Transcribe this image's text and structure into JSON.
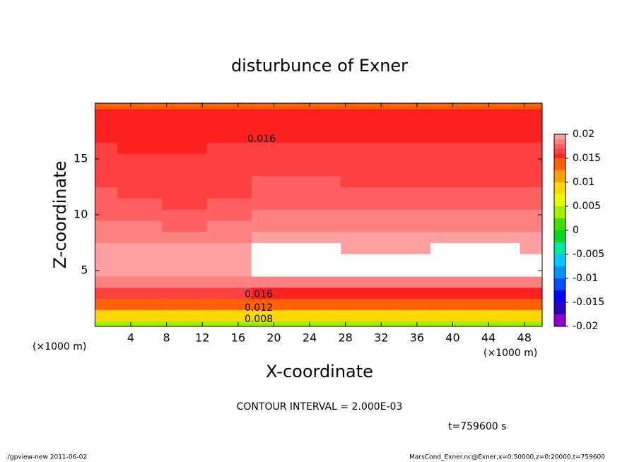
{
  "chart_data": {
    "type": "contour",
    "title": "disturbunce of Exner",
    "x_label": "X-coordinate",
    "y_label": "Z-coordinate",
    "x_unit_left": "(×1000 m)",
    "x_unit_right": "(×1000 m)",
    "contour_interval": "CONTOUR INTERVAL = 2.000E-03",
    "time_label": "t=759600 s",
    "footer_left": "./gpview-new  2011-06-02",
    "footer_right": "MarsCond_Exner.nc@Exner,x=0:50000,z=0:20000,t=759600",
    "xlim": [
      0,
      50
    ],
    "ylim": [
      0,
      20
    ],
    "xticks": [
      4,
      8,
      12,
      16,
      20,
      24,
      28,
      32,
      36,
      40,
      44,
      48
    ],
    "yticks": [
      5,
      10,
      15
    ],
    "x": [
      0,
      5,
      10,
      15,
      20,
      25,
      30,
      35,
      40,
      45,
      50
    ],
    "z": [
      0,
      1,
      2,
      3,
      4,
      5,
      6,
      7,
      8,
      9,
      10,
      11,
      12,
      13,
      14,
      15,
      16,
      17,
      18,
      19,
      20
    ],
    "values": [
      [
        0.0045,
        0.0045,
        0.0046,
        0.0046,
        0.0045,
        0.0045,
        0.0046,
        0.0046,
        0.0045,
        0.0045,
        0.0046
      ],
      [
        0.0095,
        0.0094,
        0.0093,
        0.0092,
        0.0092,
        0.0093,
        0.0092,
        0.0092,
        0.0093,
        0.0092,
        0.0093
      ],
      [
        0.0142,
        0.014,
        0.0138,
        0.0136,
        0.0136,
        0.0137,
        0.0136,
        0.0136,
        0.0137,
        0.0136,
        0.0137
      ],
      [
        0.0165,
        0.0164,
        0.0162,
        0.016,
        0.0158,
        0.0159,
        0.0158,
        0.0158,
        0.0159,
        0.0158,
        0.0159
      ],
      [
        0.0185,
        0.0184,
        0.0183,
        0.0182,
        0.0181,
        0.0182,
        0.0181,
        0.0181,
        0.0182,
        0.0181,
        0.0182
      ],
      [
        0.0198,
        0.0196,
        0.0195,
        0.0196,
        0.0203,
        0.0202,
        0.0201,
        0.0202,
        0.0203,
        0.0204,
        0.0203
      ],
      [
        0.0199,
        0.0195,
        0.0194,
        0.0199,
        0.0208,
        0.0206,
        0.0205,
        0.0206,
        0.0207,
        0.0208,
        0.0206
      ],
      [
        0.0194,
        0.0191,
        0.019,
        0.0194,
        0.0204,
        0.0203,
        0.0199,
        0.0199,
        0.0202,
        0.0203,
        0.0199
      ],
      [
        0.0188,
        0.0186,
        0.0185,
        0.0189,
        0.0197,
        0.0196,
        0.0193,
        0.0193,
        0.0194,
        0.0194,
        0.0193
      ],
      [
        0.0183,
        0.018,
        0.0179,
        0.0183,
        0.0188,
        0.0188,
        0.0187,
        0.0187,
        0.0188,
        0.0188,
        0.0187
      ],
      [
        0.0178,
        0.0175,
        0.0173,
        0.0177,
        0.0183,
        0.0183,
        0.0182,
        0.0182,
        0.0182,
        0.0182,
        0.0181
      ],
      [
        0.0174,
        0.0171,
        0.0169,
        0.0172,
        0.0178,
        0.0178,
        0.0177,
        0.0176,
        0.0176,
        0.0176,
        0.0175
      ],
      [
        0.0171,
        0.0168,
        0.0166,
        0.0169,
        0.0174,
        0.0174,
        0.0172,
        0.0171,
        0.017,
        0.017,
        0.017
      ],
      [
        0.0169,
        0.0166,
        0.0164,
        0.0166,
        0.017,
        0.017,
        0.0168,
        0.0167,
        0.0166,
        0.0166,
        0.0166
      ],
      [
        0.0167,
        0.0165,
        0.0163,
        0.0164,
        0.0167,
        0.0167,
        0.0166,
        0.0165,
        0.0164,
        0.0164,
        0.0164
      ],
      [
        0.0164,
        0.0163,
        0.0162,
        0.0163,
        0.0165,
        0.0165,
        0.0164,
        0.0163,
        0.0163,
        0.0163,
        0.0162
      ],
      [
        0.016,
        0.0159,
        0.0159,
        0.016,
        0.0161,
        0.0161,
        0.0161,
        0.016,
        0.016,
        0.016,
        0.016
      ],
      [
        0.0156,
        0.0155,
        0.0155,
        0.0156,
        0.0157,
        0.0157,
        0.0157,
        0.0156,
        0.0156,
        0.0156,
        0.0156
      ],
      [
        0.0153,
        0.0152,
        0.0152,
        0.0153,
        0.0154,
        0.0154,
        0.0153,
        0.0153,
        0.0153,
        0.0153,
        0.0153
      ],
      [
        0.0151,
        0.015,
        0.015,
        0.0151,
        0.0151,
        0.0151,
        0.0151,
        0.0151,
        0.0151,
        0.0151,
        0.0151
      ],
      [
        0.0148,
        0.0148,
        0.0148,
        0.0149,
        0.0149,
        0.0149,
        0.0149,
        0.0149,
        0.0149,
        0.0149,
        0.0149
      ]
    ],
    "levels": [
      -0.02,
      -0.0175,
      -0.015,
      -0.0125,
      -0.01,
      -0.0075,
      -0.005,
      -0.0025,
      0,
      0.0025,
      0.005,
      0.0075,
      0.01,
      0.0125,
      0.015,
      0.016,
      0.017,
      0.018,
      0.019,
      0.02
    ],
    "level_colors": [
      "#9000d0",
      "#3000c0",
      "#0000ff",
      "#0050ff",
      "#0090ff",
      "#00c8ff",
      "#00e8a0",
      "#00d820",
      "#40e000",
      "#a0f000",
      "#e8ff00",
      "#ffd800",
      "#ffa000",
      "#ff6000",
      "#ff2020",
      "#ff4040",
      "#ff6060",
      "#ff8080",
      "#ffa0a0"
    ],
    "above_color": "#ffffff",
    "colorbar_ticks": [
      0.02,
      0.015,
      0.01,
      0.005,
      0,
      -0.005,
      -0.01,
      -0.015,
      -0.02
    ],
    "contour_labels": [
      0.016,
      0.016,
      0.012,
      0.008
    ]
  }
}
